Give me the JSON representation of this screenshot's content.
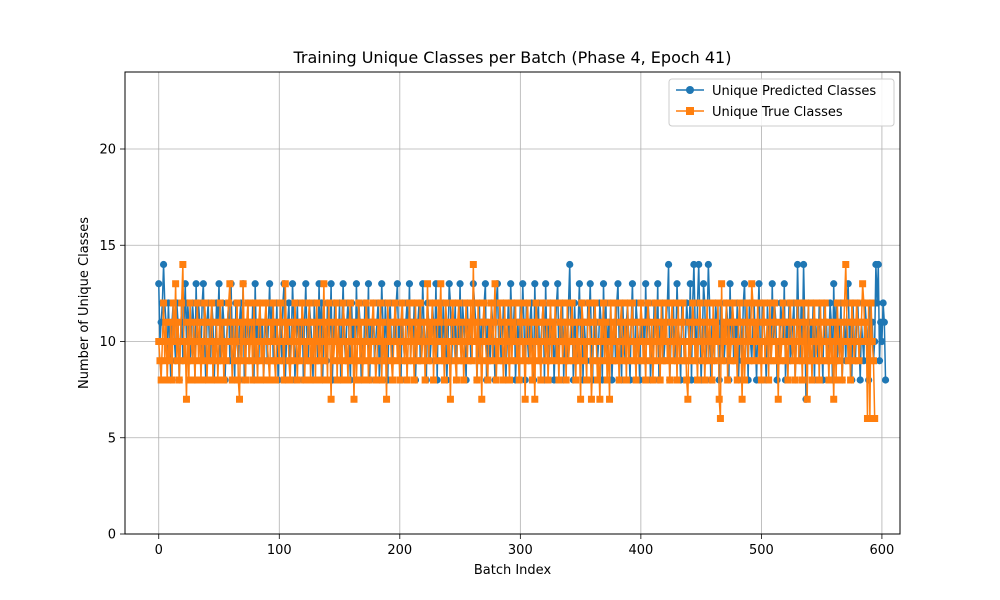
{
  "chart_data": {
    "type": "line",
    "title": "Training Unique Classes per Batch (Phase 4, Epoch 41)",
    "xlabel": "Batch Index",
    "ylabel": "Number of Unique Classes",
    "xlim": [
      -28,
      615
    ],
    "ylim": [
      0,
      24
    ],
    "xticks": [
      0,
      100,
      200,
      300,
      400,
      500,
      600
    ],
    "yticks": [
      0,
      5,
      10,
      15,
      20
    ],
    "grid": true,
    "legend_position": "top-right",
    "series": [
      {
        "name": "Unique Predicted Classes",
        "marker": "circle",
        "color": "#1f77b4",
        "values": [
          13,
          10,
          11,
          12,
          14,
          12,
          11,
          9,
          12,
          10,
          8,
          11,
          12,
          10,
          9,
          12,
          11,
          8,
          10,
          12,
          9,
          11,
          13,
          10,
          12,
          11,
          9,
          10,
          12,
          11,
          8,
          13,
          10,
          12,
          11,
          9,
          12,
          13,
          10,
          8,
          11,
          12,
          10,
          9,
          12,
          11,
          8,
          10,
          12,
          11,
          13,
          9,
          10,
          12,
          11,
          8,
          10,
          11,
          12,
          9,
          13,
          10,
          11,
          8,
          12,
          10,
          9,
          11,
          12,
          10,
          13,
          8,
          11,
          10,
          12,
          9,
          11,
          10,
          12,
          8,
          13,
          10,
          11,
          9,
          12,
          10,
          11,
          8,
          10,
          12,
          9,
          11,
          13,
          10,
          12,
          9,
          11,
          10,
          12,
          8,
          10,
          11,
          9,
          12,
          13,
          8,
          10,
          11,
          12,
          9,
          10,
          13,
          11,
          8,
          10,
          12,
          9,
          11,
          10,
          12,
          8,
          11,
          13,
          10,
          9,
          12,
          11,
          10,
          8,
          12,
          10,
          11,
          9,
          13,
          10,
          12,
          8,
          11,
          10,
          9,
          12,
          11,
          10,
          13,
          8,
          10,
          12,
          11,
          9,
          10,
          12,
          8,
          11,
          13,
          10,
          9,
          11,
          12,
          10,
          8,
          12,
          10,
          11,
          9,
          13,
          10,
          12,
          11,
          8,
          10,
          9,
          12,
          11,
          10,
          13,
          8,
          11,
          10,
          12,
          9,
          10,
          11,
          12,
          8,
          10,
          13,
          11,
          9,
          12,
          10,
          8,
          11,
          12,
          10,
          9,
          11,
          10,
          12,
          13,
          10,
          11,
          8,
          12,
          10,
          9,
          11,
          12,
          10,
          13,
          9,
          11,
          10,
          12,
          8,
          10,
          11,
          12,
          9,
          10,
          13,
          11,
          10,
          8,
          12,
          11,
          9,
          10,
          12,
          11,
          10,
          13,
          8,
          12,
          10,
          11,
          9,
          12,
          10,
          11,
          8,
          10,
          13,
          12,
          9,
          11,
          10,
          12,
          8,
          11,
          10,
          13,
          9,
          12,
          11,
          10,
          8,
          12,
          10,
          11,
          9,
          10,
          13,
          12,
          11,
          8,
          10,
          12,
          9,
          11,
          10,
          12,
          13,
          8,
          11,
          10,
          9,
          12,
          11,
          10,
          8,
          12,
          13,
          10,
          11,
          9,
          10,
          12,
          11,
          8,
          10,
          12,
          9,
          13,
          11,
          10,
          12,
          8,
          10,
          11,
          9,
          12,
          10,
          13,
          11,
          8,
          12,
          10,
          9,
          11,
          12,
          10,
          8,
          13,
          10,
          11,
          12,
          9,
          10,
          11,
          12,
          8,
          13,
          10,
          11,
          9,
          12,
          10,
          11,
          8,
          10,
          12,
          13,
          9,
          11,
          10,
          12,
          8,
          11,
          10,
          9,
          12,
          14,
          10,
          11,
          8,
          12,
          10,
          9,
          11,
          13,
          10,
          12,
          8,
          11,
          10,
          9,
          12,
          11,
          13,
          10,
          8,
          12,
          10,
          11,
          9,
          10,
          12,
          11,
          8,
          13,
          10,
          12,
          9,
          11,
          10,
          12,
          8,
          10,
          11,
          9,
          12,
          13,
          10,
          11,
          8,
          12,
          10,
          9,
          11,
          12,
          10,
          8,
          11,
          13,
          10,
          9,
          12,
          11,
          10,
          8,
          12,
          10,
          11,
          9,
          13,
          10,
          12,
          11,
          8,
          10,
          9,
          12,
          11,
          10,
          13,
          8,
          11,
          10,
          12,
          9,
          10,
          11,
          12,
          14,
          8,
          10,
          11,
          12,
          9,
          10,
          13,
          11,
          10,
          8,
          12,
          11,
          9,
          10,
          12,
          11,
          10,
          13,
          8,
          12,
          14,
          11,
          9,
          12,
          14,
          11,
          8,
          10,
          13,
          12,
          9,
          11,
          14,
          12,
          8,
          11,
          10,
          9,
          12,
          11,
          10,
          8,
          12,
          10,
          11,
          9,
          10,
          12,
          11,
          8,
          13,
          10,
          12,
          9,
          11,
          10,
          12,
          8,
          10,
          11,
          9,
          12,
          13,
          10,
          11,
          8,
          12,
          10,
          9,
          11,
          12,
          10,
          8,
          11,
          13,
          10,
          9,
          12,
          11,
          10,
          8,
          12,
          10,
          11,
          9,
          13,
          10,
          12,
          11,
          8,
          10,
          9,
          12,
          11,
          10,
          13,
          8,
          11,
          10,
          12,
          9,
          10,
          11,
          12,
          8,
          10,
          14,
          11,
          9,
          12,
          10,
          14,
          11,
          7,
          10,
          12,
          9,
          11,
          10,
          12,
          8,
          11,
          10,
          9,
          12,
          11,
          10,
          8,
          12,
          10,
          11,
          9,
          10,
          12,
          11,
          8,
          13,
          10,
          12,
          9,
          11,
          10,
          12,
          8,
          10,
          11,
          9,
          12,
          13,
          10,
          11,
          8,
          12,
          10,
          9,
          11,
          12,
          10,
          8,
          11,
          10,
          9,
          12,
          11,
          10,
          8,
          12,
          10,
          11,
          9,
          10,
          14,
          12,
          14,
          9,
          11,
          10,
          12,
          11,
          8
        ]
      },
      {
        "name": "Unique True Classes",
        "marker": "square",
        "color": "#ff7f0e",
        "values": [
          10,
          9,
          8,
          10,
          12,
          9,
          11,
          8,
          10,
          9,
          11,
          8,
          12,
          10,
          13,
          9,
          11,
          8,
          10,
          12,
          14,
          9,
          10,
          7,
          11,
          8,
          12,
          10,
          9,
          11,
          8,
          10,
          12,
          9,
          11,
          8,
          10,
          9,
          12,
          11,
          8,
          10,
          9,
          11,
          12,
          8,
          10,
          9,
          11,
          8,
          10,
          12,
          9,
          11,
          8,
          10,
          9,
          11,
          12,
          13,
          10,
          8,
          11,
          9,
          10,
          12,
          8,
          7,
          11,
          9,
          13,
          10,
          8,
          11,
          12,
          9,
          10,
          11,
          8,
          12,
          9,
          10,
          8,
          11,
          12,
          9,
          10,
          8,
          11,
          12,
          10,
          9,
          8,
          11,
          10,
          12,
          9,
          8,
          11,
          10,
          9,
          12,
          11,
          10,
          8,
          13,
          10,
          11,
          9,
          8,
          10,
          11,
          9,
          12,
          10,
          8,
          11,
          9,
          10,
          12,
          11,
          8,
          10,
          9,
          11,
          12,
          8,
          10,
          9,
          11,
          8,
          12,
          10,
          9,
          11,
          8,
          10,
          13,
          9,
          11,
          8,
          12,
          10,
          7,
          11,
          9,
          10,
          12,
          8,
          11,
          9,
          10,
          8,
          12,
          11,
          9,
          10,
          8,
          11,
          12,
          9,
          10,
          7,
          11,
          8,
          10,
          12,
          9,
          11,
          8,
          10,
          9,
          12,
          11,
          8,
          10,
          9,
          11,
          12,
          10,
          8,
          9,
          11,
          10,
          12,
          8,
          11,
          9,
          10,
          7,
          12,
          10,
          11,
          9,
          8,
          10,
          12,
          11,
          9,
          10,
          8,
          11,
          12,
          10,
          9,
          11,
          8,
          10,
          12,
          9,
          11,
          10,
          8,
          12,
          9,
          11,
          10,
          12,
          9,
          10,
          11,
          8,
          10,
          13,
          9,
          11,
          10,
          12,
          8,
          11,
          9,
          10,
          12,
          11,
          13,
          9,
          10,
          8,
          12,
          11,
          9,
          10,
          7,
          11,
          12,
          10,
          9,
          8,
          11,
          12,
          10,
          9,
          11,
          8,
          10,
          12,
          9,
          11,
          10,
          12,
          9,
          14,
          10,
          11,
          8,
          12,
          9,
          10,
          7,
          11,
          12,
          10,
          9,
          8,
          11,
          10,
          12,
          9,
          11,
          13,
          8,
          10,
          9,
          12,
          11,
          10,
          8,
          12,
          9,
          11,
          10,
          8,
          12,
          9,
          11,
          10,
          12,
          9,
          10,
          8,
          11,
          12,
          9,
          10,
          7,
          11,
          12,
          10,
          9,
          11,
          8,
          10,
          7,
          12,
          11,
          9,
          10,
          8,
          11,
          12,
          10,
          9,
          11,
          8,
          10,
          12,
          9,
          11,
          10,
          12,
          9,
          10,
          8,
          11,
          12,
          9,
          10,
          11,
          8,
          12,
          9,
          10,
          11,
          12,
          9,
          10,
          8,
          11,
          9,
          10,
          7,
          12,
          11,
          9,
          10,
          8,
          11,
          12,
          10,
          7,
          9,
          11,
          12,
          10,
          8,
          9,
          7,
          11,
          10,
          12,
          9,
          11,
          8,
          10,
          7,
          12,
          9,
          11,
          10,
          12,
          9,
          10,
          8,
          11,
          12,
          9,
          10,
          11,
          8,
          12,
          9,
          10,
          11,
          12,
          9,
          10,
          8,
          11,
          9,
          10,
          12,
          11,
          9,
          10,
          8,
          11,
          12,
          10,
          9,
          11,
          8,
          10,
          12,
          9,
          11,
          10,
          8,
          12,
          9,
          11,
          10,
          12,
          9,
          10,
          8,
          11,
          12,
          9,
          10,
          11,
          8,
          12,
          9,
          10,
          11,
          12,
          9,
          10,
          8,
          7,
          11,
          9,
          10,
          12,
          11,
          9,
          10,
          8,
          11,
          12,
          10,
          9,
          11,
          8,
          10,
          12,
          9,
          11,
          10,
          8,
          12,
          9,
          11,
          10,
          12,
          7,
          6,
          13,
          9,
          11,
          10,
          12,
          8,
          11,
          9,
          10,
          12,
          11,
          9,
          10,
          8,
          11,
          12,
          10,
          7,
          11,
          8,
          10,
          12,
          9,
          11,
          10,
          13,
          12,
          9,
          11,
          10,
          12,
          9,
          10,
          8,
          11,
          12,
          9,
          10,
          11,
          8,
          12,
          9,
          10,
          11,
          12,
          9,
          10,
          7,
          11,
          9,
          10,
          12,
          11,
          9,
          10,
          8,
          11,
          12,
          10,
          9,
          11,
          8,
          10,
          12,
          9,
          11,
          10,
          8,
          12,
          9,
          11,
          7,
          12,
          9,
          10,
          8,
          11,
          12,
          9,
          10,
          11,
          8,
          12,
          9,
          10,
          11,
          12,
          9,
          10,
          8,
          11,
          9,
          10,
          7,
          11,
          8,
          12,
          10,
          9,
          11,
          8,
          10,
          12,
          14,
          11,
          9,
          10,
          8,
          12,
          11,
          9,
          10,
          12,
          11,
          9,
          10,
          11,
          13,
          12,
          10,
          11,
          6,
          12,
          6,
          12,
          10,
          9,
          6
        ]
      }
    ]
  }
}
